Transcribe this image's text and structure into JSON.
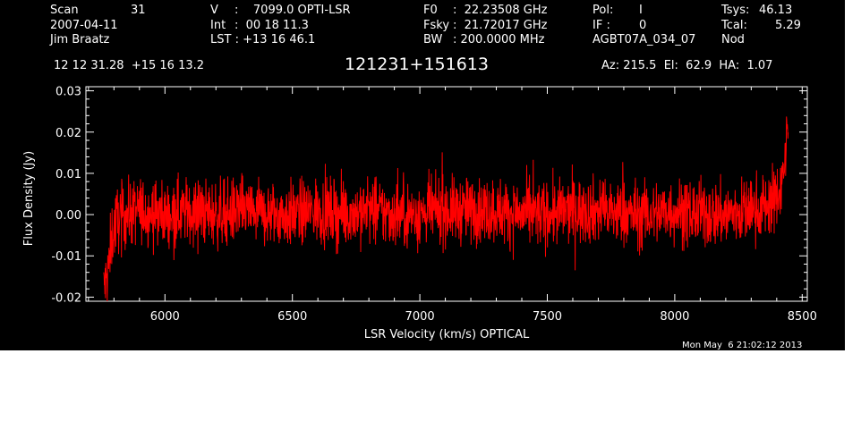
{
  "header": {
    "rows": [
      [
        "Scan",
        "31",
        "V",
        ":",
        "7099.0 OPTI-LSR",
        "F0",
        ":",
        "22.23508 GHz",
        "Pol:",
        "I",
        "Tsys:",
        "46.13"
      ],
      [
        "2007-04-11",
        "Int",
        ":",
        "00 18 11.3",
        "Fsky",
        ":",
        "21.72017 GHz",
        "IF :",
        "0",
        "Tcal:",
        "5.29"
      ],
      [
        "Jim Braatz",
        "LST : +13 16 46.1",
        "BW",
        ": 200.0000 MHz",
        "AGBT07A_034_07",
        "Nod"
      ]
    ],
    "scan_label": "Scan",
    "scan_value": "31",
    "date": "2007-04-11",
    "observer": "Jim Braatz",
    "v_label": "V",
    "v_value": ":    7099.0 OPTI-LSR",
    "int_label": "Int",
    "int_value": ":  00 18 11.3",
    "lst": "LST : +13 16 46.1",
    "f0_label": "F0",
    "f0_value": ":  22.23508 GHz",
    "fsky_label": "Fsky",
    "fsky_value": ":  21.72017 GHz",
    "bw_label": "BW",
    "bw_value": ": 200.0000 MHz",
    "pol_label": "Pol:",
    "pol_value": "I",
    "if_label": "IF :",
    "if_value": "0",
    "project": "AGBT07A_034_07",
    "tsys_label": "Tsys:",
    "tsys_value": "46.13",
    "tcal_label": "Tcal:",
    "tcal_value": "5.29",
    "mode": "Nod",
    "coords": "12 12 31.28  +15 16 13.2",
    "source": "121231+151613",
    "azelha": "Az: 215.5  El:  62.9  HA:  1.07",
    "timestamp": "Mon May  6 21:02:12 2013"
  },
  "chart_data": {
    "type": "line",
    "title": "121231+151613",
    "xlabel": "LSR Velocity (km/s) OPTICAL",
    "ylabel": "Flux Density (Jy)",
    "xlim": [
      5690,
      8520
    ],
    "ylim": [
      -0.021,
      0.031
    ],
    "xticks": [
      6000,
      6500,
      7000,
      7500,
      8000,
      8500
    ],
    "xtick_labels": [
      "6000",
      "6500",
      "7000",
      "7500",
      "8000",
      "8500"
    ],
    "yticks": [
      -0.02,
      -0.01,
      0.0,
      0.01,
      0.02,
      0.03
    ],
    "ytick_labels": [
      "-0.02",
      "-0.01",
      "0.00",
      "0.01",
      "0.02",
      "0.03"
    ],
    "grid": false,
    "series": [
      {
        "color": "#ff0000",
        "x": [
          5760,
          5775,
          5790,
          5810,
          5850,
          5900,
          6000,
          6100,
          6200,
          6300,
          6400,
          6500,
          6600,
          6700,
          6800,
          6900,
          7000,
          7100,
          7200,
          7300,
          7400,
          7500,
          7600,
          7700,
          7800,
          7900,
          8000,
          8100,
          8200,
          8300,
          8350,
          8380,
          8400,
          8420,
          8435,
          8445
        ],
        "y": [
          -0.018,
          -0.015,
          -0.006,
          -0.001,
          0.0,
          0.001,
          0.0,
          0.001,
          0.0,
          0.001,
          0.0,
          0.0,
          0.001,
          0.0,
          0.001,
          0.0,
          0.0,
          0.001,
          0.001,
          0.001,
          0.0,
          0.0,
          0.001,
          0.001,
          0.0,
          0.0,
          0.001,
          0.0,
          0.0,
          0.001,
          0.002,
          0.003,
          0.004,
          0.008,
          0.015,
          0.02
        ],
        "noise_rms": 0.004
      }
    ]
  }
}
